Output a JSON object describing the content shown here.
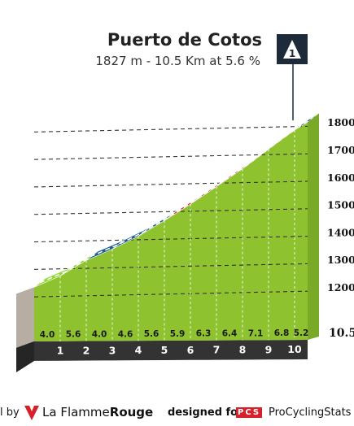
{
  "header": {
    "title": "Puerto de Cotos",
    "subtitle": "1827 m - 10.5 Km at 5.6 %",
    "category_badge": "1"
  },
  "footer": {
    "left_fragment": "l by",
    "brand_a": "La Flamme",
    "brand_b": "Rouge",
    "designed_for": "designed for",
    "pcs_badge": "PCS",
    "pcs_name": "ProCyclingStats"
  },
  "colors": {
    "profile_fill": "#8fc22f",
    "base_band": "#333333",
    "base_left": "#b7aea3",
    "green": "#8fd833",
    "blue": "#1f5f8f",
    "red": "#e0202e",
    "dashes": "#333333",
    "badge": "#1c2a3a"
  },
  "chart_data": {
    "type": "area",
    "x_km": [
      0,
      1,
      2,
      3,
      4,
      5,
      6,
      7,
      8,
      9,
      10,
      10.5
    ],
    "elevation_m": [
      1235,
      1275,
      1331,
      1371,
      1417,
      1473,
      1532,
      1595,
      1659,
      1730,
      1798,
      1826
    ],
    "segment_gradients": [
      "4.0",
      "5.6",
      "4.0",
      "4.6",
      "5.6",
      "5.9",
      "6.3",
      "6.4",
      "7.1",
      "6.8",
      "5.2"
    ],
    "segment_colors": [
      "green",
      "green",
      "blue",
      "blue",
      "blue",
      "red",
      "red",
      "red",
      "red",
      "red",
      "blue"
    ],
    "km_labels": [
      "1",
      "2",
      "3",
      "4",
      "5",
      "6",
      "7",
      "8",
      "9",
      "10"
    ],
    "end_km_label": "10.5",
    "y_ticks": [
      1200,
      1300,
      1400,
      1500,
      1600,
      1700,
      1800
    ],
    "y_tick_labels": [
      "1200m",
      "1300m",
      "1400m",
      "1500m",
      "1600m",
      "1700m",
      "1800m"
    ],
    "ylim": [
      1100,
      1850
    ]
  }
}
